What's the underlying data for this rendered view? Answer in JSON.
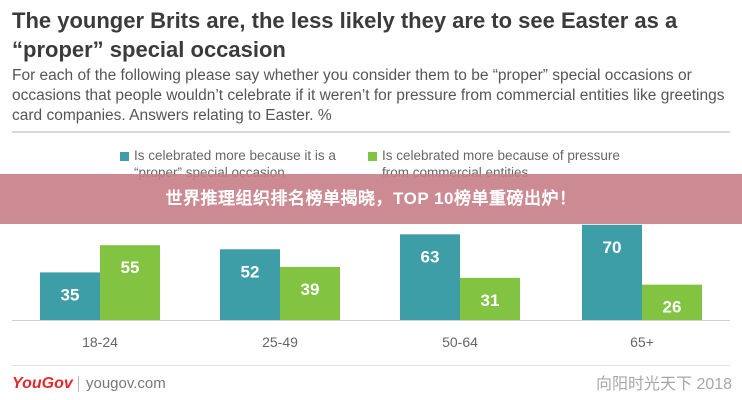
{
  "header": {
    "title": "The younger Brits are, the less likely they are to see Easter as a “proper” special occasion",
    "subtitle": "For each of the following please say whether you consider them to be “proper” special occasions or occasions that people wouldn’t celebrate if it weren’t for pressure from commercial entities like greetings card companies. Answers relating to Easter. %"
  },
  "banner": {
    "text": "世界推理组织排名榜单揭晓，TOP 10榜单重磅出炉！"
  },
  "footer": {
    "logo": "YouGov",
    "site": "yougov.com",
    "watermark": "向阳时光天下 2018"
  },
  "colors": {
    "teal": "#3d9ea8",
    "green": "#82c341",
    "axis": "#d0d0d0"
  },
  "chart_data": {
    "type": "bar",
    "categories": [
      "18-24",
      "25-49",
      "50-64",
      "65+"
    ],
    "series": [
      {
        "name": "Is celebrated more because it is a “proper” special occasion",
        "color": "#3d9ea8",
        "values": [
          35,
          52,
          63,
          70
        ]
      },
      {
        "name": "Is celebrated more because of pressure from commercial entities",
        "color": "#82c341",
        "values": [
          55,
          39,
          31,
          26
        ]
      }
    ],
    "ylim": [
      0,
      75
    ],
    "legend": "top",
    "grid": false
  }
}
